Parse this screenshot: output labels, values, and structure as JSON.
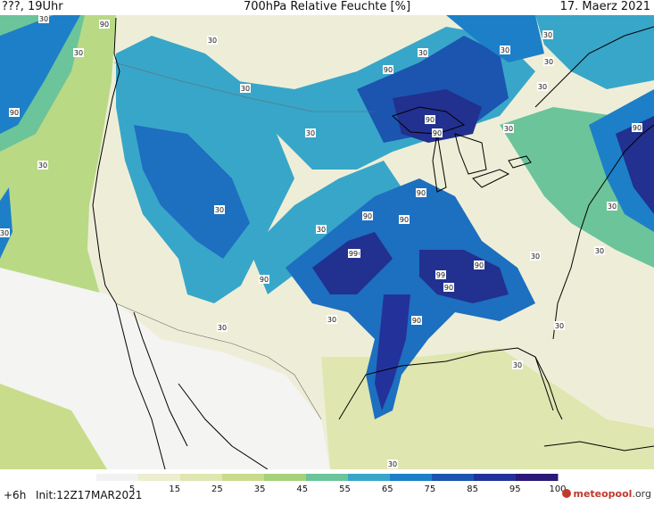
{
  "header": {
    "left": "???, 19Uhr",
    "title": "700hPa Relative Feuchte [%]",
    "date": "17. Maerz 2021"
  },
  "footer": {
    "step": "+6h",
    "init": "Init:12Z17MAR2021",
    "logo_text": "meteopool",
    "logo_suffix": ".org"
  },
  "legend": {
    "ticks": [
      "5",
      "15",
      "25",
      "35",
      "45",
      "55",
      "65",
      "75",
      "85",
      "95",
      "100"
    ],
    "colors": [
      "#f2f2f2",
      "#ededcf",
      "#dfe6b0",
      "#c9dc8c",
      "#a6d17a",
      "#6cc49a",
      "#38a6c9",
      "#1d7fc8",
      "#1b55b0",
      "#23329a",
      "#2b1878"
    ]
  },
  "map": {
    "contour_labels": [
      "30",
      "90",
      "30",
      "30",
      "90",
      "30",
      "30",
      "30",
      "30",
      "90",
      "30",
      "30",
      "30",
      "90",
      "30",
      "90",
      "30",
      "90",
      "30",
      "90",
      "90",
      "90",
      "90",
      "30",
      "30",
      "90",
      "99",
      "30",
      "30",
      "90",
      "99",
      "90",
      "30",
      "30",
      "90",
      "30",
      "30",
      "30",
      "30"
    ],
    "palette": {
      "ocean": "#b9d985",
      "land_dry": "#eeeed8",
      "very_dry": "#f4f4f2",
      "moist": "#3cb4c8",
      "very_moist": "#1d6fc0",
      "saturated": "#22308f",
      "coast": "#000000"
    }
  }
}
